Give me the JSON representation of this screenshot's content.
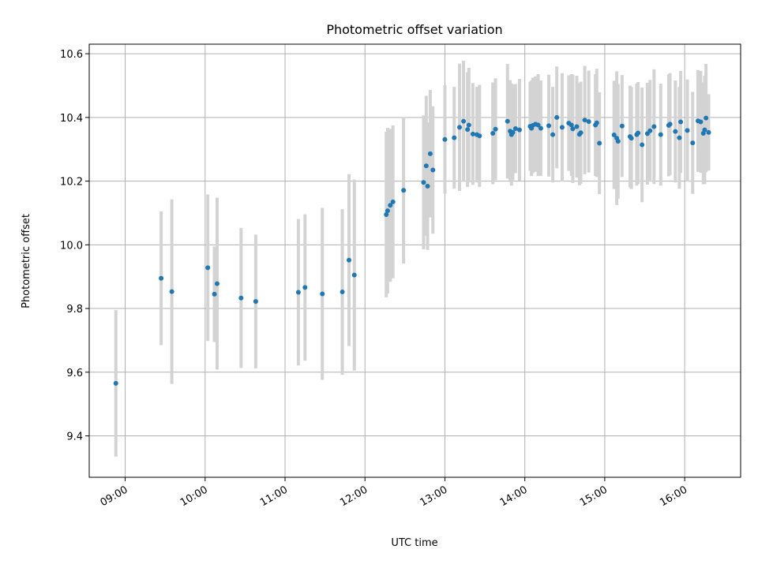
{
  "chart_data": {
    "type": "scatter",
    "title": "Photometric offset variation",
    "xlabel": "UTC time",
    "ylabel": "Photometric offset",
    "xlim": [
      "08:33",
      "16:42"
    ],
    "ylim": [
      9.27,
      10.63
    ],
    "x_ticks": [
      "09:00",
      "10:00",
      "11:00",
      "12:00",
      "13:00",
      "14:00",
      "15:00",
      "16:00"
    ],
    "y_ticks": [
      9.4,
      9.6,
      9.8,
      10.0,
      10.2,
      10.4,
      10.6
    ],
    "y_tick_labels": [
      "9.4",
      "9.6",
      "9.8",
      "10.0",
      "10.2",
      "10.4",
      "10.6"
    ],
    "grid": true,
    "colors": {
      "points": "#1f77b4",
      "error_bars": "#d3d3d3",
      "grid": "#b0b0b0"
    },
    "series": [
      {
        "x": [
          "08:53",
          "09:27",
          "09:35",
          "10:02",
          "10:07",
          "10:09",
          "10:27",
          "10:38",
          "11:10",
          "11:15",
          "11:28",
          "11:43",
          "11:48",
          "11:52",
          "12:16",
          "12:17",
          "12:19",
          "12:21",
          "12:29",
          "12:44",
          "12:46",
          "12:47",
          "12:49",
          "12:51",
          "13:00",
          "13:07",
          "13:11",
          "13:14",
          "13:17",
          "13:18",
          "13:21",
          "13:24",
          "13:26",
          "13:36",
          "13:38",
          "13:47",
          "13:49",
          "13:50",
          "13:51",
          "13:53",
          "13:56",
          "14:04",
          "14:05",
          "14:06",
          "14:08",
          "14:10",
          "14:12",
          "14:18",
          "14:21",
          "14:24",
          "14:28",
          "14:33",
          "14:35",
          "14:36",
          "14:39",
          "14:41",
          "14:42",
          "14:45",
          "14:48",
          "14:53",
          "14:54",
          "14:56",
          "15:07",
          "15:09",
          "15:10",
          "15:13",
          "15:19",
          "15:20",
          "15:24",
          "15:25",
          "15:28",
          "15:32",
          "15:34",
          "15:37",
          "15:42",
          "15:48",
          "15:49",
          "15:53",
          "15:56",
          "15:57",
          "16:02",
          "16:06",
          "16:10",
          "16:12",
          "16:14",
          "16:15",
          "16:16",
          "16:18"
        ],
        "y": [
          9.565,
          9.895,
          9.853,
          9.928,
          9.845,
          9.878,
          9.833,
          9.822,
          9.851,
          9.866,
          9.846,
          9.852,
          9.952,
          9.905,
          10.095,
          10.107,
          10.124,
          10.135,
          10.171,
          10.196,
          10.248,
          10.184,
          10.286,
          10.235,
          10.331,
          10.336,
          10.369,
          10.388,
          10.362,
          10.376,
          10.348,
          10.346,
          10.342,
          10.35,
          10.363,
          10.388,
          10.357,
          10.346,
          10.353,
          10.365,
          10.361,
          10.372,
          10.366,
          10.375,
          10.379,
          10.376,
          10.366,
          10.374,
          10.346,
          10.4,
          10.369,
          10.382,
          10.376,
          10.364,
          10.371,
          10.347,
          10.352,
          10.392,
          10.387,
          10.376,
          10.383,
          10.319,
          10.345,
          10.335,
          10.325,
          10.373,
          10.34,
          10.335,
          10.346,
          10.351,
          10.314,
          10.349,
          10.358,
          10.371,
          10.346,
          10.375,
          10.379,
          10.356,
          10.336,
          10.386,
          10.359,
          10.32,
          10.389,
          10.386,
          10.35,
          10.361,
          10.398,
          10.353
        ],
        "err": [
          0.23,
          0.21,
          0.29,
          0.23,
          0.15,
          0.27,
          0.22,
          0.21,
          0.23,
          0.23,
          0.27,
          0.26,
          0.27,
          0.3,
          0.26,
          0.26,
          0.24,
          0.24,
          0.23,
          0.21,
          0.22,
          0.2,
          0.2,
          0.2,
          0.17,
          0.16,
          0.2,
          0.19,
          0.18,
          0.18,
          0.16,
          0.15,
          0.16,
          0.16,
          0.16,
          0.18,
          0.16,
          0.16,
          0.15,
          0.14,
          0.16,
          0.14,
          0.15,
          0.15,
          0.15,
          0.16,
          0.15,
          0.16,
          0.15,
          0.16,
          0.17,
          0.15,
          0.16,
          0.17,
          0.16,
          0.16,
          0.16,
          0.17,
          0.16,
          0.16,
          0.17,
          0.16,
          0.17,
          0.21,
          0.18,
          0.16,
          0.16,
          0.16,
          0.16,
          0.16,
          0.18,
          0.16,
          0.16,
          0.18,
          0.16,
          0.16,
          0.16,
          0.16,
          0.16,
          0.16,
          0.16,
          0.16,
          0.16,
          0.16,
          0.16,
          0.17,
          0.17,
          0.12
        ]
      }
    ]
  }
}
